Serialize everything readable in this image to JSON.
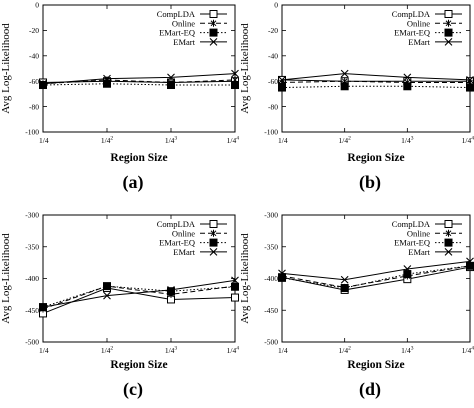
{
  "chart_data": [
    {
      "type": "line",
      "panel_label": "(a)",
      "categories": [
        "1/4",
        "1/4^2",
        "1/4^3",
        "1/4^4"
      ],
      "xlabel": "Region Size",
      "ylabel": "Avg Log-Likelihood",
      "ylim": [
        -100,
        0
      ],
      "yticks": [
        0,
        -20,
        -40,
        -60,
        -80,
        -100
      ],
      "grid": false,
      "legend_position": "top-right",
      "series": [
        {
          "name": "CompLDA",
          "marker": "square-open",
          "linestyle": "solid",
          "values": [
            -61,
            -60,
            -61,
            -60
          ]
        },
        {
          "name": "Online",
          "marker": "asterisk",
          "linestyle": "dashed",
          "values": [
            -62,
            -59,
            -61,
            -59
          ]
        },
        {
          "name": "EMart-EQ",
          "marker": "square-filled",
          "linestyle": "dotted",
          "values": [
            -63,
            -62,
            -63,
            -63
          ]
        },
        {
          "name": "EMart",
          "marker": "x",
          "linestyle": "solid",
          "values": [
            -62,
            -58,
            -57,
            -54
          ]
        }
      ]
    },
    {
      "type": "line",
      "panel_label": "(b)",
      "categories": [
        "1/4",
        "1/4^2",
        "1/4^3",
        "1/4^4"
      ],
      "xlabel": "Region Size",
      "ylabel": "Avg Log-Likelihood",
      "ylim": [
        -100,
        0
      ],
      "yticks": [
        0,
        -20,
        -40,
        -60,
        -80,
        -100
      ],
      "grid": false,
      "legend_position": "top-right",
      "series": [
        {
          "name": "CompLDA",
          "marker": "square-open",
          "linestyle": "solid",
          "values": [
            -59,
            -60,
            -60,
            -60
          ]
        },
        {
          "name": "Online",
          "marker": "asterisk",
          "linestyle": "dashed",
          "values": [
            -61,
            -60,
            -61,
            -61
          ]
        },
        {
          "name": "EMart-EQ",
          "marker": "square-filled",
          "linestyle": "dotted",
          "values": [
            -65,
            -64,
            -64,
            -65
          ]
        },
        {
          "name": "EMart",
          "marker": "x",
          "linestyle": "solid",
          "values": [
            -59,
            -54,
            -57,
            -59
          ]
        }
      ]
    },
    {
      "type": "line",
      "panel_label": "(c)",
      "categories": [
        "1/4",
        "1/4^2",
        "1/4^3",
        "1/4^4"
      ],
      "xlabel": "Region Size",
      "ylabel": "Avg Log-Likelihood",
      "ylim": [
        -500,
        -300
      ],
      "yticks": [
        -300,
        -350,
        -400,
        -450,
        -500
      ],
      "grid": false,
      "legend_position": "top-right",
      "series": [
        {
          "name": "CompLDA",
          "marker": "square-open",
          "linestyle": "solid",
          "values": [
            -455,
            -415,
            -433,
            -430
          ]
        },
        {
          "name": "Online",
          "marker": "asterisk",
          "linestyle": "dashed",
          "values": [
            -448,
            -412,
            -425,
            -412
          ]
        },
        {
          "name": "EMart-EQ",
          "marker": "square-filled",
          "linestyle": "dotted",
          "values": [
            -445,
            -412,
            -420,
            -413
          ]
        },
        {
          "name": "EMart",
          "marker": "x",
          "linestyle": "solid",
          "values": [
            -445,
            -427,
            -418,
            -403
          ]
        }
      ]
    },
    {
      "type": "line",
      "panel_label": "(d)",
      "categories": [
        "1/4",
        "1/4^2",
        "1/4^3",
        "1/4^4"
      ],
      "xlabel": "Region Size",
      "ylabel": "Avg Log-Likelihood",
      "ylim": [
        -500,
        -300
      ],
      "yticks": [
        -300,
        -350,
        -400,
        -450,
        -500
      ],
      "grid": false,
      "legend_position": "top-right",
      "series": [
        {
          "name": "CompLDA",
          "marker": "square-open",
          "linestyle": "solid",
          "values": [
            -398,
            -418,
            -401,
            -382
          ]
        },
        {
          "name": "Online",
          "marker": "asterisk",
          "linestyle": "dashed",
          "values": [
            -396,
            -414,
            -396,
            -380
          ]
        },
        {
          "name": "EMart-EQ",
          "marker": "square-filled",
          "linestyle": "dotted",
          "values": [
            -399,
            -415,
            -393,
            -380
          ]
        },
        {
          "name": "EMart",
          "marker": "x",
          "linestyle": "solid",
          "values": [
            -392,
            -402,
            -385,
            -373
          ]
        }
      ]
    }
  ]
}
